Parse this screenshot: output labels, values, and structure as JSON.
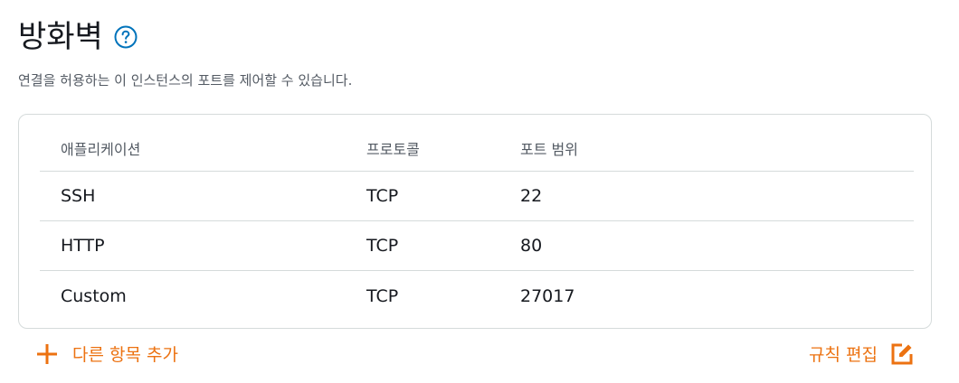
{
  "section": {
    "title": "방화벽",
    "help_icon": "question-circle-icon",
    "description": "연결을 허용하는 이 인스턴스의 포트를 제어할 수 있습니다."
  },
  "table": {
    "columns": [
      "애플리케이션",
      "프로토콜",
      "포트 범위"
    ],
    "rows": [
      {
        "application": "SSH",
        "protocol": "TCP",
        "port_range": "22"
      },
      {
        "application": "HTTP",
        "protocol": "TCP",
        "port_range": "80"
      },
      {
        "application": "Custom",
        "protocol": "TCP",
        "port_range": "27017"
      }
    ]
  },
  "actions": {
    "add_label": "다른 항목 추가",
    "add_icon": "plus-icon",
    "edit_label": "규칙 편집",
    "edit_icon": "edit-icon"
  },
  "colors": {
    "accent": "#ec7211",
    "help": "#0073bb",
    "border": "#d5dbdb",
    "text_primary": "#16191f",
    "text_secondary": "#545b64"
  }
}
